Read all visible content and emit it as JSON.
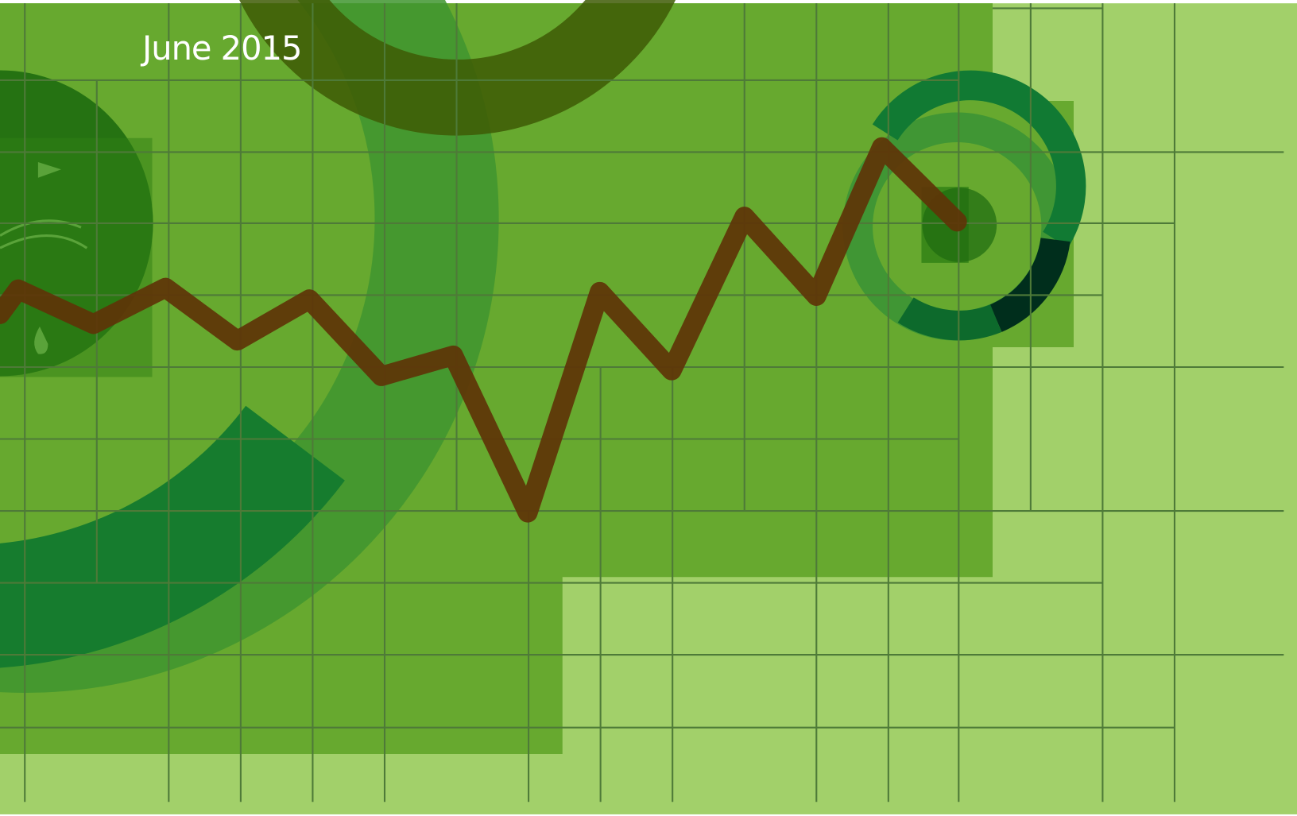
{
  "date": "June 2015"
}
